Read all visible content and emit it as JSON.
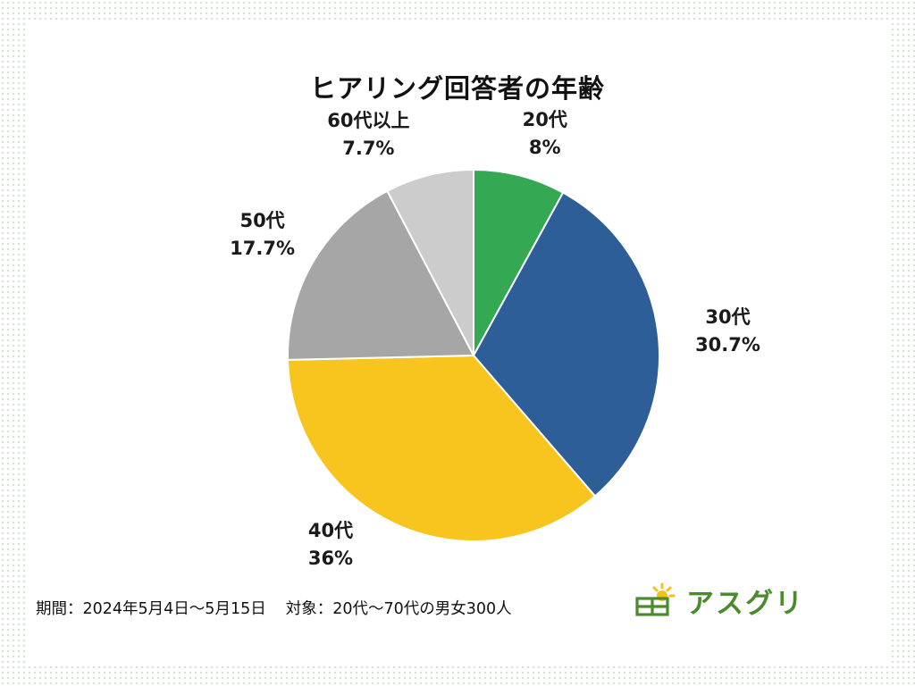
{
  "chart_data": {
    "type": "pie",
    "title": "ヒアリング回答者の年齢",
    "slices": [
      {
        "label": "20代",
        "value_label": "8%",
        "value": 8,
        "color": "#34a853"
      },
      {
        "label": "30代",
        "value_label": "30.7%",
        "value": 30.7,
        "color": "#2e5e97"
      },
      {
        "label": "40代",
        "value_label": "36%",
        "value": 36,
        "color": "#f7c51d"
      },
      {
        "label": "50代",
        "value_label": "17.7%",
        "value": 17.7,
        "color": "#a6a6a6"
      },
      {
        "label": "60代以上",
        "value_label": "7.7%",
        "value": 7.7,
        "color": "#cccccc"
      }
    ],
    "start_angle": "12 o'clock",
    "direction": "clockwise",
    "legend": "none"
  },
  "footnote": {
    "period": "期間：2024年5月4日〜5月15日",
    "target": "対象：20代〜70代の男女300人"
  },
  "logo": {
    "text": "アスグリ",
    "icon": "sun-field-icon",
    "color": "#4a8b2c",
    "accent": "#f2c21b"
  }
}
